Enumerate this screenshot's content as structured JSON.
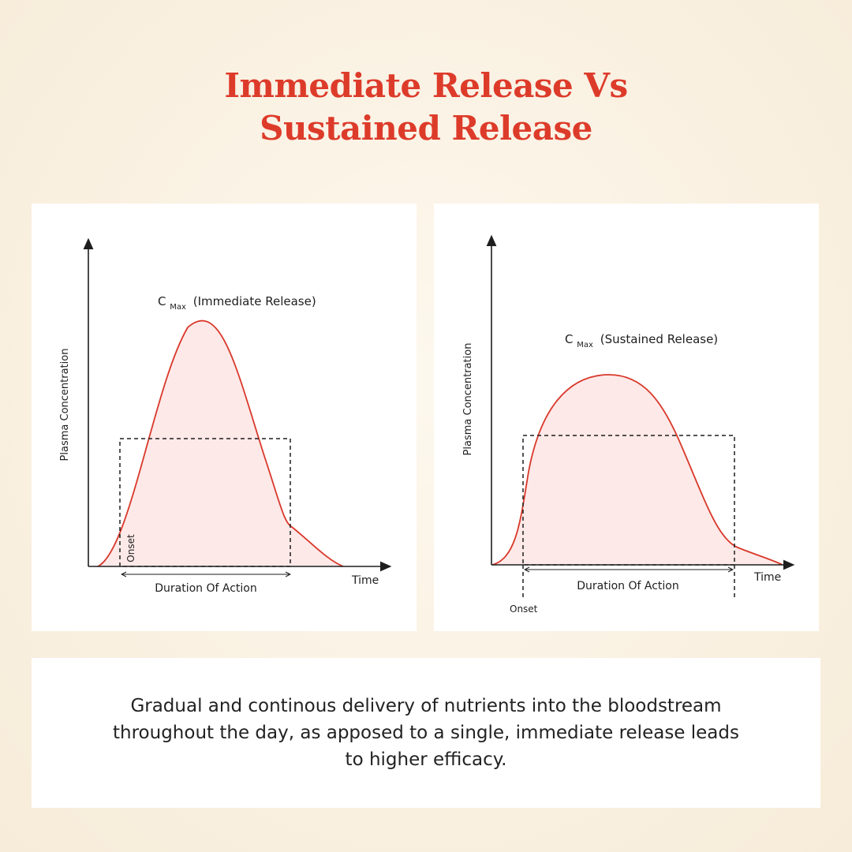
{
  "title": {
    "line1": "Immediate Release Vs",
    "line2": "Sustained Release"
  },
  "colors": {
    "accent": "#dd3b2a",
    "curve": "#d9382a",
    "fill": "#fde9e8",
    "axis": "#1e1e1e"
  },
  "charts": [
    {
      "peak_label_main": "C",
      "peak_label_sub": "Max",
      "peak_label_rest": "(Immediate Release)",
      "y_axis_label": "Plasma Concentration",
      "x_axis_label": "Time",
      "duration_label": "Duration Of Action",
      "onset_label": "Onset"
    },
    {
      "peak_label_main": "C",
      "peak_label_sub": "Max",
      "peak_label_rest": "(Sustained Release)",
      "y_axis_label": "Plasma Concentration",
      "x_axis_label": "Time",
      "duration_label": "Duration Of Action",
      "onset_label": "Onset"
    }
  ],
  "caption": "Gradual and continous delivery of nutrients into the bloodstream throughout the day, as apposed to a single, immediate release leads to higher efficacy."
}
